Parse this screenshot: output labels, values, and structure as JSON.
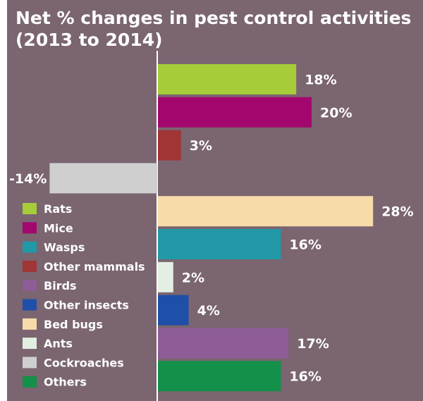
{
  "chart_data": {
    "type": "bar",
    "orientation": "horizontal",
    "title": "Net % changes in pest control activities (2013 to 2014)",
    "unit": "%",
    "xlim": [
      -14,
      28
    ],
    "categories": [
      "Rats",
      "Mice",
      "Other mammals",
      "Cockroaches",
      "Bed bugs",
      "Wasps",
      "Ants",
      "Other insects",
      "Birds",
      "Others"
    ],
    "values": [
      18,
      20,
      3,
      -14,
      28,
      16,
      2,
      4,
      17,
      16
    ],
    "value_labels": [
      "18%",
      "20%",
      "3%",
      "-14%",
      "28%",
      "16%",
      "2%",
      "4%",
      "17%",
      "16%"
    ],
    "colors": [
      "#a6cc3a",
      "#a3076e",
      "#a03535",
      "#cfcfcf",
      "#f7dcaa",
      "#2199a6",
      "#e3efe2",
      "#1f4fa8",
      "#8e5c96",
      "#13904a"
    ],
    "legend": {
      "placement": "bottom-left",
      "items": [
        {
          "label": "Rats",
          "color": "#a6cc3a"
        },
        {
          "label": "Mice",
          "color": "#a3076e"
        },
        {
          "label": "Wasps",
          "color": "#2199a6"
        },
        {
          "label": "Other mammals",
          "color": "#a03535"
        },
        {
          "label": "Birds",
          "color": "#8e5c96"
        },
        {
          "label": "Other insects",
          "color": "#1f4fa8"
        },
        {
          "label": "Bed bugs",
          "color": "#f7dcaa"
        },
        {
          "label": "Ants",
          "color": "#e3efe2"
        },
        {
          "label": "Cockroaches",
          "color": "#cfcfcf"
        },
        {
          "label": "Others",
          "color": "#13904a"
        }
      ]
    },
    "background": "#7a6570",
    "axis_color": "#ffffff"
  }
}
